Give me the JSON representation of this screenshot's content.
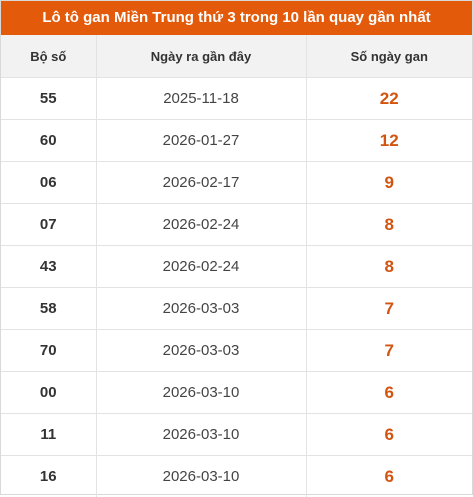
{
  "title": "Lô tô gan Miền Trung thứ 3 trong 10 lần quay gần nhất",
  "colors": {
    "header_bg": "#e35a0a",
    "header_text": "#ffffff",
    "gan_value": "#d2540f"
  },
  "columns": [
    "Bộ số",
    "Ngày ra gần đây",
    "Số ngày gan"
  ],
  "rows": [
    {
      "number": "55",
      "date": "2025-11-18",
      "days": "22"
    },
    {
      "number": "60",
      "date": "2026-01-27",
      "days": "12"
    },
    {
      "number": "06",
      "date": "2026-02-17",
      "days": "9"
    },
    {
      "number": "07",
      "date": "2026-02-24",
      "days": "8"
    },
    {
      "number": "43",
      "date": "2026-02-24",
      "days": "8"
    },
    {
      "number": "58",
      "date": "2026-03-03",
      "days": "7"
    },
    {
      "number": "70",
      "date": "2026-03-03",
      "days": "7"
    },
    {
      "number": "00",
      "date": "2026-03-10",
      "days": "6"
    },
    {
      "number": "11",
      "date": "2026-03-10",
      "days": "6"
    },
    {
      "number": "16",
      "date": "2026-03-10",
      "days": "6"
    }
  ]
}
